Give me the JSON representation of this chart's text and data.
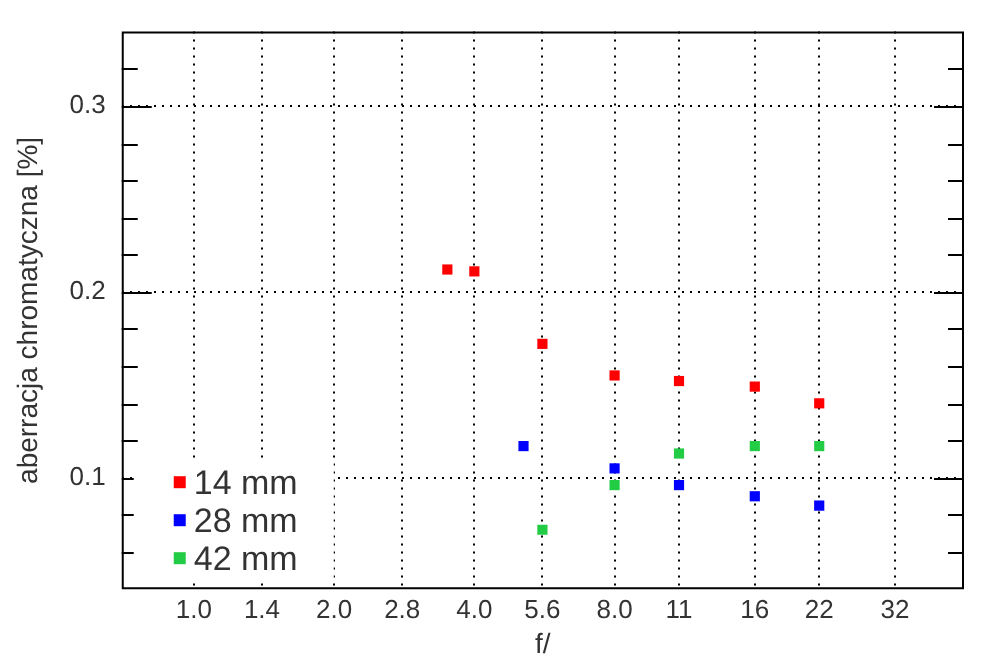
{
  "chart_data": {
    "type": "scatter",
    "xlabel": "f/",
    "ylabel": "aberracja chromatyczna [%]",
    "log": "x",
    "xlim": [
      0.71,
      45
    ],
    "ylim": [
      0.04,
      0.34
    ],
    "xticks": [
      {
        "value": 1,
        "label": "1.0"
      },
      {
        "value": 1.4,
        "label": "1.4"
      },
      {
        "value": 2,
        "label": "2.0"
      },
      {
        "value": 2.8,
        "label": "2.8"
      },
      {
        "value": 4,
        "label": "4.0"
      },
      {
        "value": 5.6,
        "label": "5.6"
      },
      {
        "value": 8,
        "label": "8.0"
      },
      11,
      16,
      22,
      32
    ],
    "yticks": [
      {
        "value": 0.06,
        "label": null
      },
      {
        "value": 0.08,
        "label": null
      },
      {
        "value": 0.1,
        "label": "0.1"
      },
      {
        "value": 0.12,
        "label": null
      },
      {
        "value": 0.14,
        "label": null
      },
      {
        "value": 0.16,
        "label": null
      },
      {
        "value": 0.18,
        "label": null
      },
      {
        "value": 0.2,
        "label": "0.2"
      },
      {
        "value": 0.22,
        "label": null
      },
      {
        "value": 0.24,
        "label": null
      },
      {
        "value": 0.26,
        "label": null
      },
      {
        "value": 0.28,
        "label": null
      },
      {
        "value": 0.3,
        "label": "0.3"
      },
      {
        "value": 0.32,
        "label": null
      }
    ],
    "grid": true,
    "legend": "bottom left",
    "marker": "square",
    "series": [
      {
        "name": "14 mm",
        "color": "#ff0000",
        "x": [
          3.5,
          4,
          5.6,
          8,
          11,
          16,
          22
        ],
        "values": [
          0.212,
          0.211,
          0.172,
          0.155,
          0.152,
          0.149,
          0.14
        ]
      },
      {
        "name": "28 mm",
        "color": "#0000ff",
        "x": [
          5.1,
          8,
          11,
          16,
          22
        ],
        "values": [
          0.117,
          0.105,
          0.096,
          0.09,
          0.085
        ]
      },
      {
        "name": "42 mm",
        "color": "#22cc44",
        "x": [
          5.6,
          8,
          11,
          16,
          22
        ],
        "values": [
          0.072,
          0.096,
          0.113,
          0.117,
          0.117
        ]
      }
    ]
  }
}
